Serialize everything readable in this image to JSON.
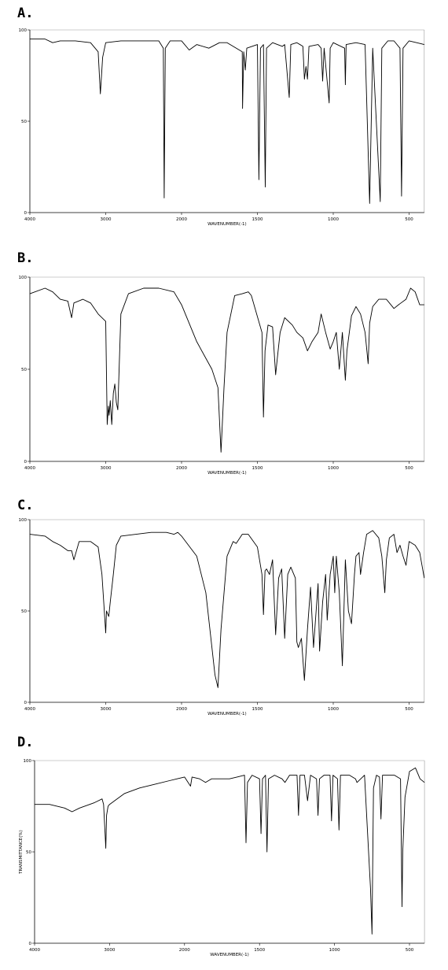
{
  "chart_data": [
    {
      "type": "line",
      "title": "A.",
      "x_label": "WAVENUMBER(-1)",
      "color": "#000000",
      "xlim": [
        4000,
        400
      ],
      "xticks": [
        4000,
        3000,
        2000,
        1500,
        1000,
        500
      ],
      "ylim": [
        0,
        100
      ],
      "yticks": [
        0,
        50,
        100
      ],
      "x": [
        4000,
        3800,
        3700,
        3600,
        3400,
        3200,
        3100,
        3070,
        3040,
        3000,
        2800,
        2500,
        2300,
        2240,
        2229,
        2215,
        2150,
        2000,
        1950,
        1900,
        1820,
        1750,
        1700,
        1600,
        1598,
        1590,
        1580,
        1570,
        1500,
        1490,
        1480,
        1460,
        1448,
        1440,
        1400,
        1335,
        1320,
        1290,
        1280,
        1240,
        1200,
        1190,
        1180,
        1170,
        1160,
        1100,
        1080,
        1070,
        1060,
        1027,
        1020,
        1000,
        925,
        920,
        915,
        850,
        790,
        760,
        740,
        690,
        680,
        640,
        600,
        560,
        550,
        540,
        500,
        450,
        400
      ],
      "values": [
        95,
        95,
        93,
        94,
        94,
        93,
        88,
        65,
        85,
        93,
        94,
        94,
        94,
        90,
        8,
        90,
        94,
        94,
        89,
        92,
        90,
        93,
        93,
        88,
        57,
        88,
        78,
        90,
        92,
        18,
        90,
        92,
        14,
        90,
        93,
        91,
        92,
        63,
        92,
        93,
        91,
        73,
        80,
        73,
        91,
        92,
        90,
        72,
        90,
        60,
        90,
        93,
        90,
        70,
        92,
        93,
        92,
        5,
        90,
        6,
        90,
        94,
        94,
        90,
        9,
        90,
        94,
        93,
        92
      ]
    },
    {
      "type": "line",
      "title": "B.",
      "x_label": "WAVENUMBER(-1)",
      "color": "#000000",
      "xlim": [
        4000,
        400
      ],
      "xticks": [
        4000,
        3000,
        2000,
        1500,
        1000,
        500
      ],
      "ylim": [
        0,
        100
      ],
      "yticks": [
        0,
        50,
        100
      ],
      "x": [
        4000,
        3800,
        3700,
        3600,
        3500,
        3450,
        3420,
        3300,
        3200,
        3100,
        3000,
        2980,
        2965,
        2955,
        2940,
        2920,
        2900,
        2880,
        2860,
        2840,
        2800,
        2700,
        2500,
        2300,
        2100,
        2000,
        1900,
        1800,
        1760,
        1740,
        1720,
        1700,
        1650,
        1600,
        1560,
        1540,
        1470,
        1460,
        1450,
        1430,
        1400,
        1380,
        1370,
        1350,
        1320,
        1270,
        1240,
        1200,
        1170,
        1140,
        1100,
        1080,
        1050,
        1020,
        1000,
        980,
        960,
        940,
        920,
        910,
        880,
        850,
        820,
        790,
        770,
        760,
        740,
        700,
        650,
        600,
        570,
        520,
        490,
        460,
        430,
        400
      ],
      "values": [
        91,
        94,
        92,
        88,
        87,
        78,
        86,
        88,
        86,
        80,
        76,
        20,
        30,
        25,
        33,
        20,
        37,
        42,
        32,
        28,
        80,
        91,
        94,
        94,
        92,
        85,
        65,
        50,
        40,
        5,
        40,
        70,
        90,
        91,
        92,
        90,
        70,
        24,
        60,
        74,
        73,
        47,
        55,
        70,
        78,
        74,
        70,
        67,
        60,
        65,
        70,
        80,
        70,
        61,
        65,
        70,
        50,
        70,
        44,
        60,
        79,
        84,
        80,
        70,
        53,
        75,
        84,
        88,
        88,
        83,
        85,
        88,
        94,
        92,
        85,
        85
      ]
    },
    {
      "type": "line",
      "title": "C.",
      "x_label": "WAVENUMBER(-1)",
      "color": "#000000",
      "xlim": [
        4000,
        400
      ],
      "xticks": [
        4000,
        3000,
        2000,
        1500,
        1000,
        500
      ],
      "ylim": [
        0,
        100
      ],
      "yticks": [
        0,
        50,
        100
      ],
      "x": [
        4000,
        3800,
        3700,
        3600,
        3500,
        3450,
        3420,
        3350,
        3200,
        3100,
        3050,
        3000,
        2990,
        2960,
        2940,
        2900,
        2860,
        2800,
        2600,
        2400,
        2200,
        2100,
        2050,
        2000,
        1900,
        1840,
        1780,
        1760,
        1740,
        1700,
        1660,
        1640,
        1600,
        1560,
        1500,
        1470,
        1460,
        1450,
        1440,
        1420,
        1400,
        1380,
        1360,
        1340,
        1320,
        1300,
        1280,
        1250,
        1240,
        1230,
        1210,
        1190,
        1170,
        1150,
        1130,
        1100,
        1090,
        1070,
        1050,
        1040,
        1020,
        1000,
        990,
        980,
        960,
        940,
        920,
        900,
        880,
        860,
        850,
        830,
        820,
        800,
        780,
        740,
        700,
        680,
        660,
        650,
        630,
        600,
        580,
        560,
        540,
        520,
        500,
        460,
        430,
        400
      ],
      "values": [
        92,
        91,
        88,
        86,
        83,
        83,
        78,
        88,
        88,
        85,
        70,
        38,
        50,
        47,
        55,
        70,
        86,
        91,
        92,
        93,
        93,
        92,
        93,
        91,
        80,
        60,
        15,
        8,
        40,
        80,
        88,
        87,
        92,
        92,
        85,
        70,
        48,
        72,
        73,
        70,
        78,
        37,
        68,
        73,
        35,
        70,
        74,
        68,
        33,
        30,
        35,
        12,
        40,
        63,
        30,
        65,
        28,
        55,
        70,
        45,
        70,
        80,
        60,
        80,
        60,
        20,
        78,
        50,
        43,
        70,
        80,
        82,
        70,
        82,
        92,
        94,
        90,
        80,
        60,
        78,
        90,
        92,
        82,
        86,
        80,
        75,
        88,
        86,
        82,
        68
      ]
    },
    {
      "type": "line",
      "title": "D.",
      "x_label": "WAVENUMBER(-1)",
      "y_label": "TRANSMITTANCE(%)",
      "color": "#000000",
      "xlim": [
        4000,
        400
      ],
      "xticks": [
        4000,
        3000,
        2000,
        1500,
        1000,
        500
      ],
      "ylim": [
        0,
        100
      ],
      "yticks": [
        0,
        50,
        100
      ],
      "x": [
        4000,
        3800,
        3600,
        3500,
        3400,
        3200,
        3100,
        3080,
        3060,
        3050,
        3040,
        3020,
        3000,
        2800,
        2600,
        2400,
        2200,
        2100,
        2000,
        1960,
        1950,
        1900,
        1860,
        1820,
        1780,
        1700,
        1650,
        1600,
        1590,
        1580,
        1550,
        1500,
        1490,
        1480,
        1460,
        1450,
        1440,
        1400,
        1350,
        1330,
        1300,
        1250,
        1240,
        1230,
        1200,
        1180,
        1160,
        1120,
        1110,
        1100,
        1070,
        1030,
        1020,
        1010,
        980,
        970,
        960,
        900,
        860,
        850,
        800,
        760,
        750,
        740,
        720,
        700,
        690,
        680,
        600,
        560,
        550,
        545,
        530,
        500,
        460,
        430,
        400
      ],
      "values": [
        76,
        76,
        74,
        72,
        74,
        77,
        79,
        76,
        60,
        52,
        70,
        75,
        76,
        82,
        85,
        87,
        89,
        90,
        91,
        86,
        91,
        90,
        88,
        90,
        90,
        90,
        91,
        92,
        55,
        88,
        92,
        90,
        60,
        90,
        92,
        50,
        90,
        92,
        90,
        88,
        92,
        92,
        70,
        92,
        92,
        78,
        92,
        90,
        70,
        90,
        92,
        92,
        67,
        92,
        90,
        62,
        92,
        92,
        90,
        88,
        92,
        30,
        5,
        85,
        92,
        91,
        68,
        92,
        92,
        90,
        20,
        50,
        80,
        94,
        96,
        90,
        88
      ]
    }
  ]
}
